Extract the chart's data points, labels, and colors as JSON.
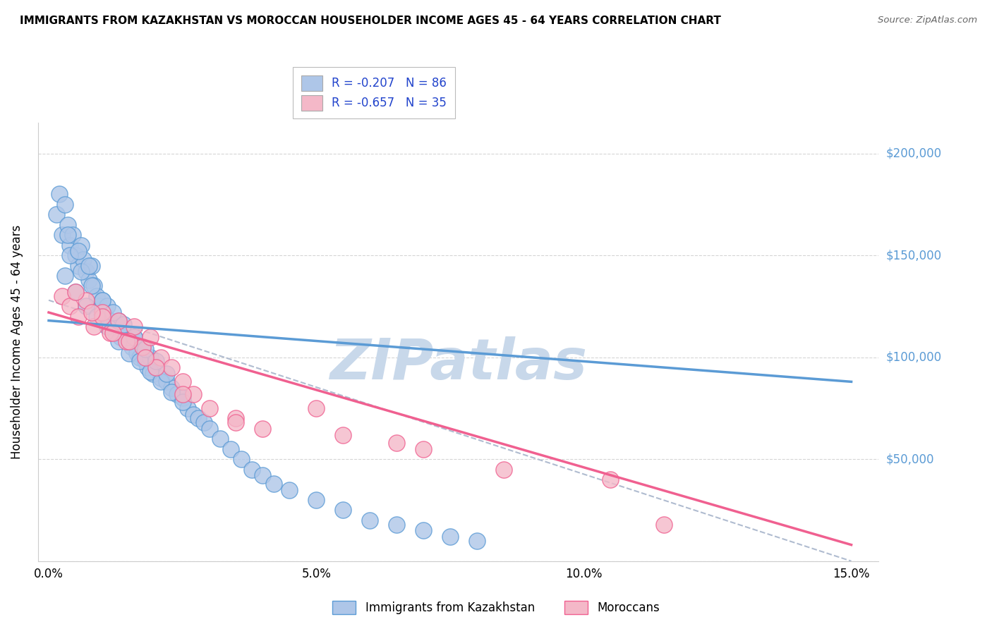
{
  "title": "IMMIGRANTS FROM KAZAKHSTAN VS MOROCCAN HOUSEHOLDER INCOME AGES 45 - 64 YEARS CORRELATION CHART",
  "source": "Source: ZipAtlas.com",
  "ylabel": "Householder Income Ages 45 - 64 years",
  "xlabel_vals": [
    0.0,
    5.0,
    10.0,
    15.0
  ],
  "ylabel_vals": [
    0,
    50000,
    100000,
    150000,
    200000
  ],
  "ylabel_labels": [
    "",
    "$50,000",
    "$100,000",
    "$150,000",
    "$200,000"
  ],
  "xlim": [
    -0.2,
    15.5
  ],
  "ylim": [
    0,
    215000
  ],
  "blue_color": "#5b9bd5",
  "pink_color": "#f06090",
  "blue_fill": "#aec6e8",
  "pink_fill": "#f4b8c8",
  "watermark": "ZIPatlas",
  "watermark_color": "#c8d8ea",
  "grid_color": "#d5d5d5",
  "blue_scatter_x": [
    0.15,
    0.2,
    0.25,
    0.3,
    0.35,
    0.4,
    0.45,
    0.5,
    0.55,
    0.6,
    0.65,
    0.7,
    0.75,
    0.8,
    0.85,
    0.9,
    0.95,
    1.0,
    1.05,
    1.1,
    1.15,
    1.2,
    1.25,
    1.3,
    1.35,
    1.4,
    1.5,
    1.55,
    1.6,
    1.65,
    1.7,
    1.75,
    1.8,
    1.85,
    1.9,
    1.95,
    2.0,
    2.1,
    2.2,
    2.3,
    2.4,
    2.5,
    2.6,
    2.7,
    2.8,
    2.9,
    3.0,
    3.2,
    3.4,
    3.6,
    3.8,
    4.0,
    4.2,
    4.5,
    5.0,
    5.5,
    6.0,
    6.5,
    7.0,
    7.5,
    8.0,
    0.3,
    0.5,
    0.7,
    0.9,
    1.1,
    1.3,
    1.5,
    1.7,
    1.9,
    2.1,
    2.3,
    2.5,
    0.4,
    0.6,
    0.8,
    1.0,
    1.2,
    1.4,
    1.6,
    1.8,
    2.0,
    2.2,
    0.35,
    0.55,
    0.75
  ],
  "blue_scatter_y": [
    170000,
    180000,
    160000,
    175000,
    165000,
    155000,
    160000,
    150000,
    145000,
    155000,
    148000,
    142000,
    138000,
    145000,
    135000,
    130000,
    125000,
    128000,
    120000,
    125000,
    118000,
    115000,
    112000,
    118000,
    110000,
    112000,
    108000,
    105000,
    110000,
    102000,
    100000,
    105000,
    98000,
    95000,
    100000,
    92000,
    95000,
    90000,
    88000,
    85000,
    82000,
    80000,
    75000,
    72000,
    70000,
    68000,
    65000,
    60000,
    55000,
    50000,
    45000,
    42000,
    38000,
    35000,
    30000,
    25000,
    20000,
    18000,
    15000,
    12000,
    10000,
    140000,
    132000,
    125000,
    120000,
    115000,
    108000,
    102000,
    98000,
    93000,
    88000,
    83000,
    78000,
    150000,
    142000,
    135000,
    128000,
    122000,
    116000,
    110000,
    104000,
    98000,
    92000,
    160000,
    152000,
    145000
  ],
  "pink_scatter_x": [
    0.25,
    0.4,
    0.55,
    0.7,
    0.85,
    1.0,
    1.15,
    1.3,
    1.45,
    1.6,
    1.75,
    1.9,
    2.1,
    2.3,
    2.5,
    2.7,
    3.0,
    3.5,
    4.0,
    5.0,
    5.5,
    6.5,
    7.0,
    8.5,
    10.5,
    11.5,
    1.0,
    1.5,
    2.0,
    2.5,
    0.5,
    0.8,
    1.2,
    1.8,
    3.5
  ],
  "pink_scatter_y": [
    130000,
    125000,
    120000,
    128000,
    115000,
    122000,
    112000,
    118000,
    108000,
    115000,
    105000,
    110000,
    100000,
    95000,
    88000,
    82000,
    75000,
    70000,
    65000,
    75000,
    62000,
    58000,
    55000,
    45000,
    40000,
    18000,
    120000,
    108000,
    95000,
    82000,
    132000,
    122000,
    112000,
    100000,
    68000
  ],
  "blue_line_x": [
    0,
    15
  ],
  "blue_line_y": [
    118000,
    88000
  ],
  "pink_line_x": [
    0,
    15
  ],
  "pink_line_y": [
    122000,
    8000
  ],
  "dash_line_x": [
    0,
    15
  ],
  "dash_line_y": [
    128000,
    0
  ],
  "legend_label_blue": "R = -0.207   N = 86",
  "legend_label_pink": "R = -0.657   N = 35",
  "bottom_legend_blue": "Immigrants from Kazakhstan",
  "bottom_legend_pink": "Moroccans"
}
